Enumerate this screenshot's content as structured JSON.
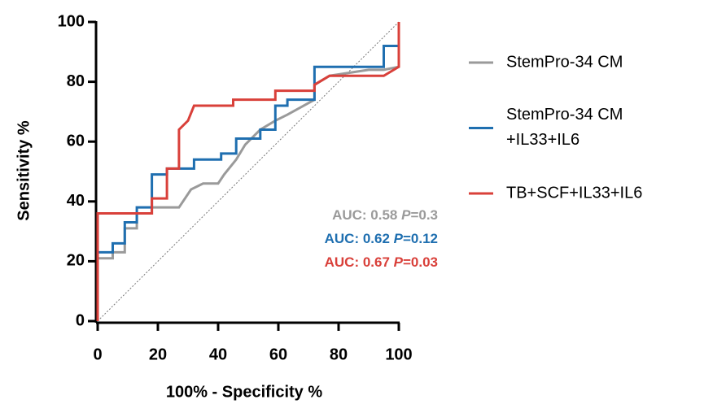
{
  "chart_data": {
    "type": "line",
    "x_label": "100% - Specificity %",
    "y_label": "Sensitivity %",
    "xlim": [
      0,
      100
    ],
    "ylim": [
      0,
      100
    ],
    "xticks": [
      0,
      20,
      40,
      60,
      80,
      100
    ],
    "yticks": [
      0,
      20,
      40,
      60,
      80,
      100
    ],
    "series": [
      {
        "name": "StemPro-34 CM",
        "color": "#9a9a9a",
        "x": [
          0,
          0,
          5,
          5,
          9,
          9,
          13,
          13,
          18,
          18,
          27,
          31,
          35,
          40,
          42,
          46,
          49,
          54,
          59,
          63,
          72,
          72,
          77,
          90,
          95,
          100,
          100
        ],
        "values": [
          0,
          21,
          21,
          23,
          23,
          31,
          31,
          36,
          36,
          38,
          38,
          44,
          46,
          46,
          49,
          54,
          59,
          64,
          67,
          69,
          74,
          79,
          82,
          84,
          84,
          85,
          89
        ]
      },
      {
        "name": "StemPro-34 CM +IL33+IL6",
        "color": "#1f6fb0",
        "x": [
          0,
          0,
          5,
          5,
          9,
          9,
          13,
          13,
          18,
          18,
          23,
          23,
          32,
          32,
          41,
          41,
          46,
          46,
          54,
          54,
          59,
          59,
          63,
          63,
          72,
          72,
          95,
          95,
          100,
          100
        ],
        "values": [
          0,
          23,
          23,
          26,
          26,
          33,
          33,
          38,
          38,
          49,
          49,
          51,
          51,
          54,
          54,
          56,
          56,
          61,
          61,
          64,
          64,
          72,
          72,
          74,
          74,
          85,
          85,
          92,
          92,
          100
        ]
      },
      {
        "name": "TB+SCF+IL33+IL6",
        "color": "#d9403a",
        "x": [
          0,
          0,
          18,
          18,
          23,
          23,
          27,
          27,
          30,
          32,
          45,
          45,
          59,
          59,
          72,
          72,
          77,
          95,
          100,
          100
        ],
        "values": [
          0,
          36,
          36,
          41,
          41,
          51,
          51,
          64,
          67,
          72,
          72,
          74,
          74,
          77,
          77,
          79,
          82,
          82,
          85,
          100
        ]
      }
    ],
    "annotations": [
      {
        "parts": [
          "AUC: ",
          "0.58 ",
          "P",
          "=0.3"
        ],
        "color": "#9a9a9a"
      },
      {
        "parts": [
          "AUC: ",
          "0.62 ",
          "P",
          "=0.12"
        ],
        "color": "#1f6fb0"
      },
      {
        "parts": [
          "AUC: ",
          "0.67 ",
          "P",
          "=0.03"
        ],
        "color": "#d9403a"
      }
    ]
  }
}
